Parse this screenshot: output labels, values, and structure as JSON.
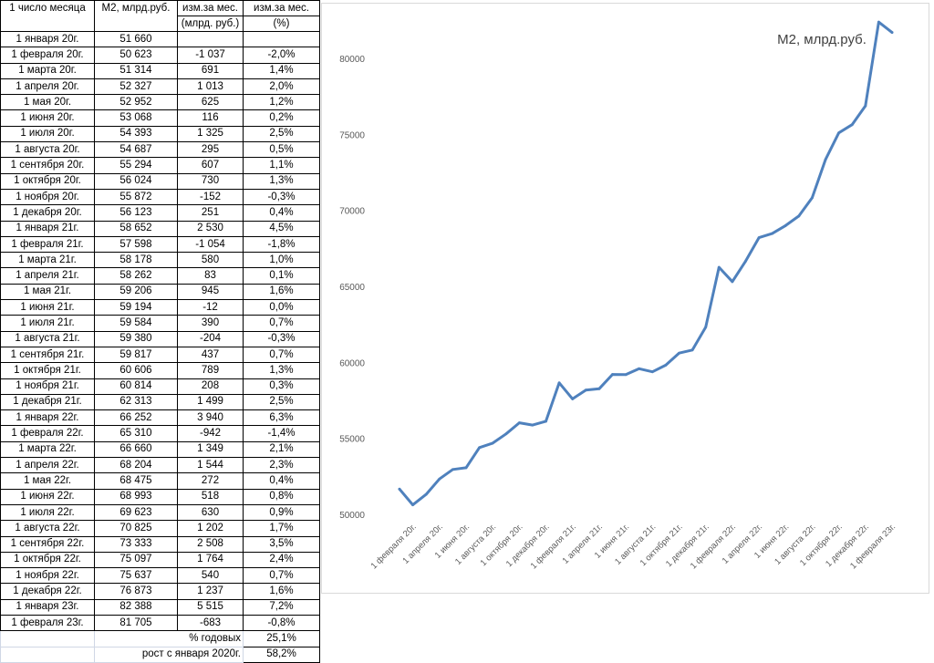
{
  "table": {
    "headers": [
      [
        "1 число месяца",
        "М2, млрд.руб.",
        "изм.за мес.",
        "изм.за мес."
      ],
      [
        "",
        "",
        "(млрд. руб.)",
        "(%)"
      ]
    ],
    "rows": [
      [
        "1 января 20г.",
        "51 660",
        "",
        ""
      ],
      [
        "1 февраля 20г.",
        "50 623",
        "-1 037",
        "-2,0%"
      ],
      [
        "1 марта 20г.",
        "51 314",
        "691",
        "1,4%"
      ],
      [
        "1 апреля 20г.",
        "52 327",
        "1 013",
        "2,0%"
      ],
      [
        "1 мая 20г.",
        "52 952",
        "625",
        "1,2%"
      ],
      [
        "1 июня 20г.",
        "53 068",
        "116",
        "0,2%"
      ],
      [
        "1 июля 20г.",
        "54 393",
        "1 325",
        "2,5%"
      ],
      [
        "1 августа 20г.",
        "54 687",
        "295",
        "0,5%"
      ],
      [
        "1 сентября 20г.",
        "55 294",
        "607",
        "1,1%"
      ],
      [
        "1 октября 20г.",
        "56 024",
        "730",
        "1,3%"
      ],
      [
        "1 ноября 20г.",
        "55 872",
        "-152",
        "-0,3%"
      ],
      [
        "1 декабря 20г.",
        "56 123",
        "251",
        "0,4%"
      ],
      [
        "1 января 21г.",
        "58 652",
        "2 530",
        "4,5%"
      ],
      [
        "1 февраля 21г.",
        "57 598",
        "-1 054",
        "-1,8%"
      ],
      [
        "1 марта 21г.",
        "58 178",
        "580",
        "1,0%"
      ],
      [
        "1 апреля 21г.",
        "58 262",
        "83",
        "0,1%"
      ],
      [
        "1 мая 21г.",
        "59 206",
        "945",
        "1,6%"
      ],
      [
        "1 июня 21г.",
        "59 194",
        "-12",
        "0,0%"
      ],
      [
        "1 июля 21г.",
        "59 584",
        "390",
        "0,7%"
      ],
      [
        "1 августа 21г.",
        "59 380",
        "-204",
        "-0,3%"
      ],
      [
        "1 сентября 21г.",
        "59 817",
        "437",
        "0,7%"
      ],
      [
        "1 октября 21г.",
        "60 606",
        "789",
        "1,3%"
      ],
      [
        "1 ноября 21г.",
        "60 814",
        "208",
        "0,3%"
      ],
      [
        "1 декабря 21г.",
        "62 313",
        "1 499",
        "2,5%"
      ],
      [
        "1 января 22г.",
        "66 252",
        "3 940",
        "6,3%"
      ],
      [
        "1 февраля 22г.",
        "65 310",
        "-942",
        "-1,4%"
      ],
      [
        "1 марта 22г.",
        "66 660",
        "1 349",
        "2,1%"
      ],
      [
        "1 апреля 22г.",
        "68 204",
        "1 544",
        "2,3%"
      ],
      [
        "1 мая 22г.",
        "68 475",
        "272",
        "0,4%"
      ],
      [
        "1 июня 22г.",
        "68 993",
        "518",
        "0,8%"
      ],
      [
        "1 июля 22г.",
        "69 623",
        "630",
        "0,9%"
      ],
      [
        "1 августа 22г.",
        "70 825",
        "1 202",
        "1,7%"
      ],
      [
        "1 сентября 22г.",
        "73 333",
        "2 508",
        "3,5%"
      ],
      [
        "1 октября 22г.",
        "75 097",
        "1 764",
        "2,4%"
      ],
      [
        "1 ноября 22г.",
        "75 637",
        "540",
        "0,7%"
      ],
      [
        "1 декабря 22г.",
        "76 873",
        "1 237",
        "1,6%"
      ],
      [
        "1 января 23г.",
        "82 388",
        "5 515",
        "7,2%"
      ],
      [
        "1 февраля 23г.",
        "81 705",
        "-683",
        "-0,8%"
      ]
    ],
    "summary": [
      {
        "label": "% годовых",
        "value": "25,1%"
      },
      {
        "label": "рост с января 2020г.",
        "value": "58,2%"
      }
    ]
  },
  "chart_data": {
    "type": "line",
    "title": "М2, млрд.руб.",
    "x": [
      "1 января 20г.",
      "1 февраля 20г.",
      "1 марта 20г.",
      "1 апреля 20г.",
      "1 мая 20г.",
      "1 июня 20г.",
      "1 июля 20г.",
      "1 августа 20г.",
      "1 сентября 20г.",
      "1 октября 20г.",
      "1 ноября 20г.",
      "1 декабря 20г.",
      "1 января 21г.",
      "1 февраля 21г.",
      "1 марта 21г.",
      "1 апреля 21г.",
      "1 мая 21г.",
      "1 июня 21г.",
      "1 июля 21г.",
      "1 августа 21г.",
      "1 сентября 21г.",
      "1 октября 21г.",
      "1 ноября 21г.",
      "1 декабря 21г.",
      "1 января 22г.",
      "1 февраля 22г.",
      "1 марта 22г.",
      "1 апреля 22г.",
      "1 мая 22г.",
      "1 июня 22г.",
      "1 июля 22г.",
      "1 августа 22г.",
      "1 сентября 22г.",
      "1 октября 22г.",
      "1 ноября 22г.",
      "1 декабря 22г.",
      "1 января 23г.",
      "1 февраля 23г."
    ],
    "x_tick_labels": [
      "1 февраля 20г.",
      "1 апреля 20г.",
      "1 июня 20г.",
      "1 августа 20г.",
      "1 октября 20г.",
      "1 декабря 20г.",
      "1 февраля 21г.",
      "1 апреля 21г.",
      "1 июня 21г.",
      "1 августа 21г.",
      "1 октября 21г.",
      "1 декабря 21г.",
      "1 февраля 22г.",
      "1 апреля 22г.",
      "1 июня 22г.",
      "1 августа 22г.",
      "1 октября 22г.",
      "1 декабря 22г.",
      "1 февраля 23г."
    ],
    "values": [
      51660,
      50623,
      51314,
      52327,
      52952,
      53068,
      54393,
      54687,
      55294,
      56024,
      55872,
      56123,
      58652,
      57598,
      58178,
      58262,
      59206,
      59194,
      59584,
      59380,
      59817,
      60606,
      60814,
      62313,
      66252,
      65310,
      66660,
      68204,
      68475,
      68993,
      69623,
      70825,
      73333,
      75097,
      75637,
      76873,
      82388,
      81705
    ],
    "y_ticks": [
      "50000",
      "55000",
      "60000",
      "65000",
      "70000",
      "75000",
      "80000"
    ],
    "ylim": [
      50000,
      83000
    ],
    "line_color": "#4f81bd",
    "grid": false,
    "legend": "none"
  }
}
